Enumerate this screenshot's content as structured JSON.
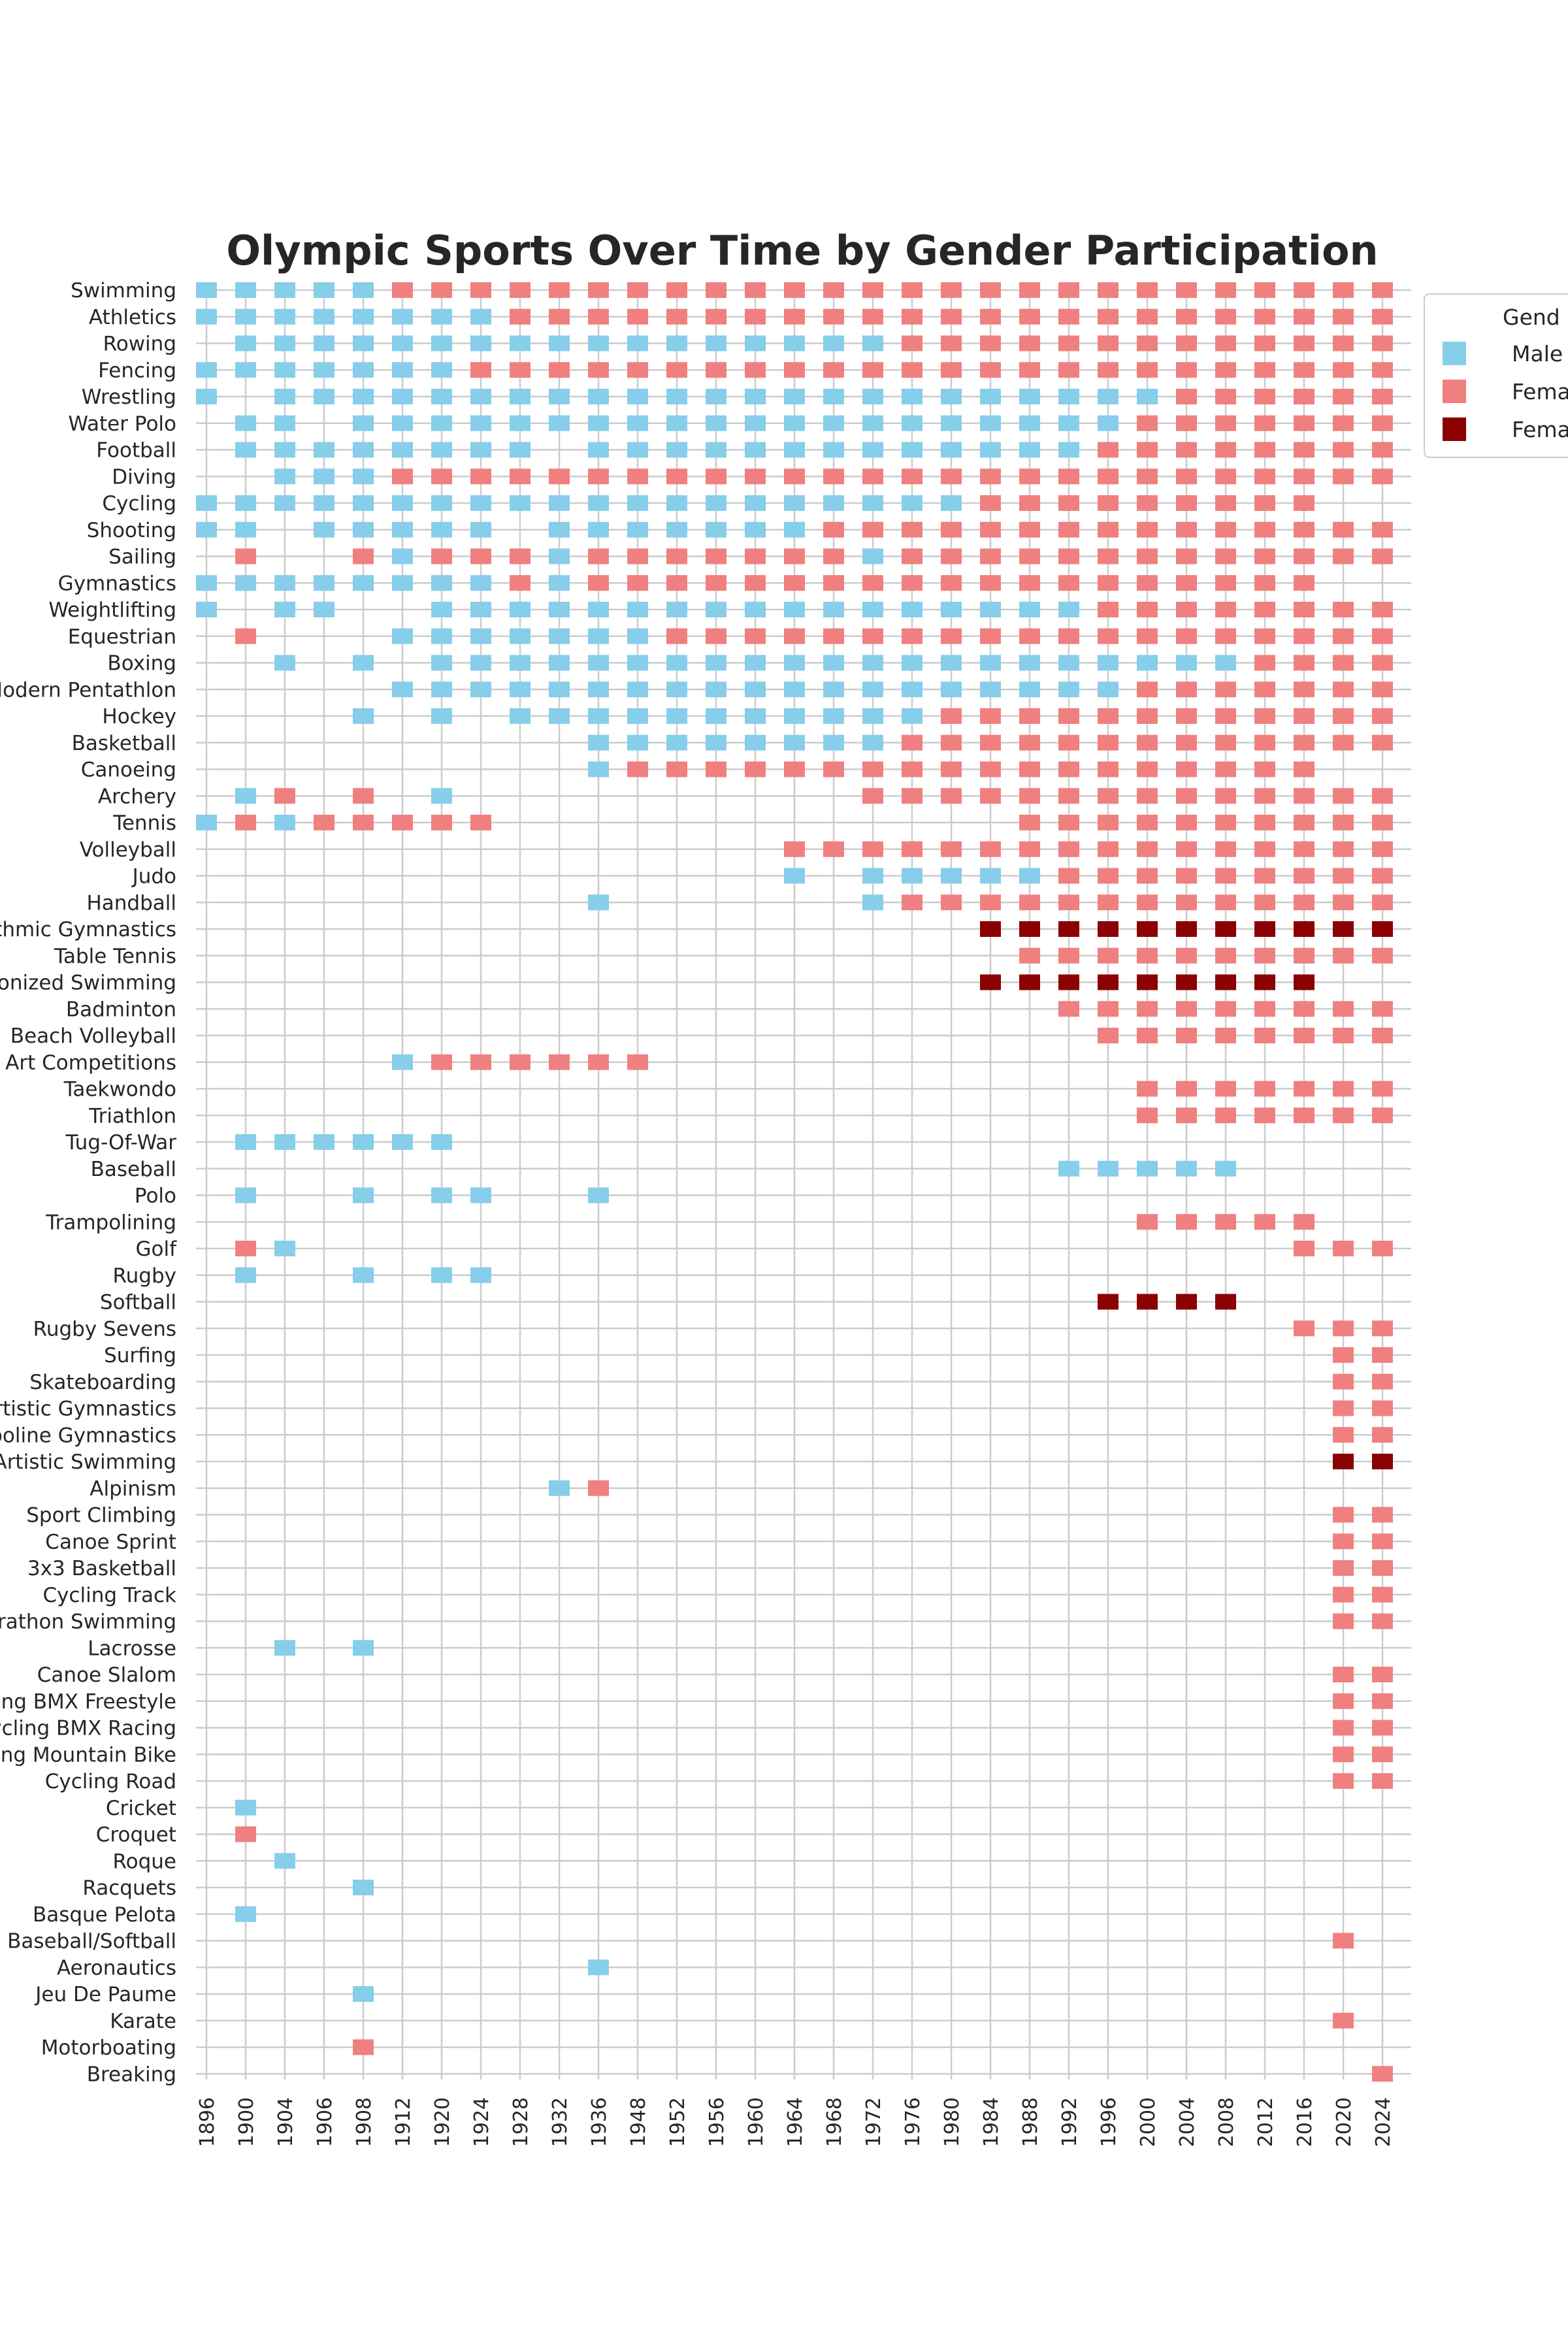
{
  "chart_data": {
    "type": "heatmap",
    "title": "Olympic Sports Over Time by Gender Participation",
    "xlabel": "",
    "ylabel": "",
    "grid": true,
    "legend_position": "right",
    "legend_title": "Gend",
    "legend": [
      {
        "label": "Male",
        "category": "M",
        "color": "#87CEEB"
      },
      {
        "label": "Fema",
        "category": "F",
        "color": "#F08080"
      },
      {
        "label": "Fema",
        "category": "W",
        "color": "#8B0000"
      }
    ],
    "years": [
      "1896",
      "1900",
      "1904",
      "1906",
      "1908",
      "1912",
      "1920",
      "1924",
      "1928",
      "1932",
      "1936",
      "1948",
      "1952",
      "1956",
      "1960",
      "1964",
      "1968",
      "1972",
      "1976",
      "1980",
      "1984",
      "1988",
      "1992",
      "1996",
      "2000",
      "2004",
      "2008",
      "2012",
      "2016",
      "2020",
      "2024"
    ],
    "sports": [
      {
        "label": "Swimming",
        "cells": "MMMMMFFFFFFFFFFFFFFFFFFFFFFFFFF"
      },
      {
        "label": "Athletics",
        "cells": "MMMMMMMMFFFFFFFFFFFFFFFFFFFFFFF"
      },
      {
        "label": "Rowing",
        "cells": ".MMMMMMMMMMMMMMMMMFFFFFFFFFFFFF"
      },
      {
        "label": "Fencing",
        "cells": "MMMMMMMFFFFFFFFFFFFFFFFFFFFFFFF"
      },
      {
        "label": "Wrestling",
        "cells": "M.MMMMMMMMMMMMMMMMMMMMMMMFFFFFF"
      },
      {
        "label": "Water Polo",
        "cells": ".MM.MMMMMMMMMMMMMMMMMMMMFFFFFFF"
      },
      {
        "label": "Football",
        "cells": ".MMMMMMMM.MMMMMMMMMMMMMFFFFFFFF"
      },
      {
        "label": "Diving",
        "cells": "..MMMFFFFFFFFFFFFFFFFFFFFFFFFFF"
      },
      {
        "label": "Cycling",
        "cells": "MMMMMMMMMMMMMMMMMMMMFFFFFFFFF.."
      },
      {
        "label": "Shooting",
        "cells": "MM.MMMMM.MMMMMMMFFFFFFFFFFFFFFF"
      },
      {
        "label": "Sailing",
        "cells": ".F..FMFFFMFFFFFFFMFFFFFFFFFFFFF"
      },
      {
        "label": "Gymnastics",
        "cells": "MMMMMMMMFMFFFFFFFFFFFFFFFFFFF.."
      },
      {
        "label": "Weightlifting",
        "cells": "M.MM..MMMMMMMMMMMMMMMMMFFFFFFFF"
      },
      {
        "label": "Equestrian",
        "cells": ".F...MMMMMMMFFFFFFFFFFFFFFFFFFF"
      },
      {
        "label": "Boxing",
        "cells": "..M.M.MMMMMMMMMMMMMMMMMMMMMFFFF"
      },
      {
        "label": "Modern Pentathlon",
        "cells": ".....MMMMMMMMMMMMMMMMMMMFFFFFFF"
      },
      {
        "label": "Hockey",
        "cells": "....M.M.MMMMMMMMMMMFFFFFFFFFFFF"
      },
      {
        "label": "Basketball",
        "cells": "..........MMMMMMMMFFFFFFFFFFFFF"
      },
      {
        "label": "Canoeing",
        "cells": "..........MFFFFFFFFFFFFFFFFFF.."
      },
      {
        "label": "Archery",
        "cells": ".MF.F.M..........FFFFFFFFFFFFFF"
      },
      {
        "label": "Tennis",
        "cells": "MFMFFFFF.............FFFFFFFFFF"
      },
      {
        "label": "Volleyball",
        "cells": "...............FFFFFFFFFFFFFFFF"
      },
      {
        "label": "Judo",
        "cells": "...............M.MMMMMFFFFFFFFF"
      },
      {
        "label": "Handball",
        "cells": "..........M......MFFFFFFFFFFFFF"
      },
      {
        "label": "Rhythmic Gymnastics",
        "cells": "....................WWWWWWWWWWW"
      },
      {
        "label": "Table Tennis",
        "cells": ".....................FFFFFFFFFF"
      },
      {
        "label": "Synchronized Swimming",
        "cells": "....................WWWWWWWWW.."
      },
      {
        "label": "Badminton",
        "cells": "......................FFFFFFFFF"
      },
      {
        "label": "Beach Volleyball",
        "cells": ".......................FFFFFFFF"
      },
      {
        "label": "Art Competitions",
        "cells": ".....MFFFFFF..................."
      },
      {
        "label": "Taekwondo",
        "cells": "........................FFFFFFF"
      },
      {
        "label": "Triathlon",
        "cells": "........................FFFFFFF"
      },
      {
        "label": "Tug-Of-War",
        "cells": ".MMMMMM........................"
      },
      {
        "label": "Baseball",
        "cells": "......................MMMMM...."
      },
      {
        "label": "Polo",
        "cells": ".M..M.MM..M...................."
      },
      {
        "label": "Trampolining",
        "cells": "........................FFFFF.."
      },
      {
        "label": "Golf",
        "cells": ".FM.........................FFF"
      },
      {
        "label": "Rugby",
        "cells": ".M..M.MM......................."
      },
      {
        "label": "Softball",
        "cells": ".......................WWWW...."
      },
      {
        "label": "Rugby Sevens",
        "cells": "............................FFF"
      },
      {
        "label": "Surfing",
        "cells": ".............................FF"
      },
      {
        "label": "Skateboarding",
        "cells": ".............................FF"
      },
      {
        "label": "Artistic Gymnastics",
        "cells": ".............................FF"
      },
      {
        "label": "Trampoline Gymnastics",
        "cells": ".............................FF"
      },
      {
        "label": "Artistic Swimming",
        "cells": ".............................WW"
      },
      {
        "label": "Alpinism",
        "cells": ".........MF...................."
      },
      {
        "label": "Sport Climbing",
        "cells": ".............................FF"
      },
      {
        "label": "Canoe Sprint",
        "cells": ".............................FF"
      },
      {
        "label": "3x3 Basketball",
        "cells": ".............................FF"
      },
      {
        "label": "Cycling Track",
        "cells": ".............................FF"
      },
      {
        "label": "Marathon Swimming",
        "cells": ".............................FF"
      },
      {
        "label": "Lacrosse",
        "cells": "..M.M.........................."
      },
      {
        "label": "Canoe Slalom",
        "cells": ".............................FF"
      },
      {
        "label": "Cycling BMX Freestyle",
        "cells": ".............................FF"
      },
      {
        "label": "Cycling BMX Racing",
        "cells": ".............................FF"
      },
      {
        "label": "Cycling Mountain Bike",
        "cells": ".............................FF"
      },
      {
        "label": "Cycling Road",
        "cells": ".............................FF"
      },
      {
        "label": "Cricket",
        "cells": ".M............................."
      },
      {
        "label": "Croquet",
        "cells": ".F............................."
      },
      {
        "label": "Roque",
        "cells": "..M............................"
      },
      {
        "label": "Racquets",
        "cells": "....M.........................."
      },
      {
        "label": "Basque Pelota",
        "cells": ".M............................."
      },
      {
        "label": "Baseball/Softball",
        "cells": ".............................F."
      },
      {
        "label": "Aeronautics",
        "cells": "..........M...................."
      },
      {
        "label": "Jeu De Paume",
        "cells": "....M.........................."
      },
      {
        "label": "Karate",
        "cells": ".............................F."
      },
      {
        "label": "Motorboating",
        "cells": "....F.........................."
      },
      {
        "label": "Breaking",
        "cells": "..............................F"
      }
    ]
  }
}
